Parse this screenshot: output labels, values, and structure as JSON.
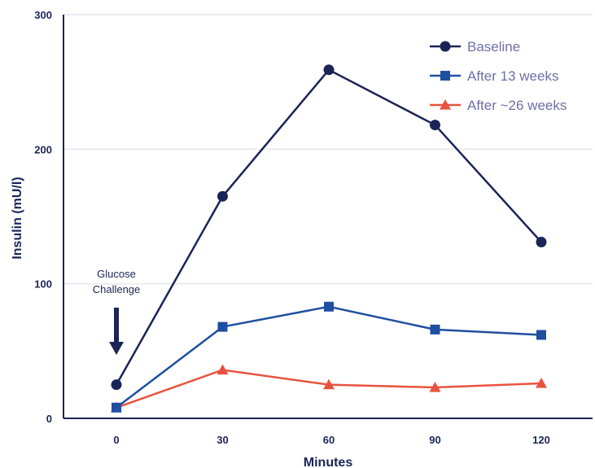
{
  "chart_data": {
    "type": "line",
    "xlabel": "Minutes",
    "ylabel": "Insulin (mU/l)",
    "x": [
      0,
      30,
      60,
      90,
      120
    ],
    "x_tick_labels": [
      "0",
      "30",
      "60",
      "90",
      "120"
    ],
    "ylim": [
      0,
      300
    ],
    "y_ticks": [
      0,
      100,
      200,
      300
    ],
    "y_tick_labels": [
      "0",
      "100",
      "200",
      "300"
    ],
    "grid": "horizontal",
    "legend_position": "top-right",
    "series": [
      {
        "name": "Baseline",
        "marker": "circle",
        "color": "#1a2456",
        "values": [
          25,
          165,
          259,
          218,
          131
        ]
      },
      {
        "name": "After 13 weeks",
        "marker": "square",
        "color": "#1f4fa0",
        "values": [
          8,
          68,
          83,
          66,
          62
        ]
      },
      {
        "name": "After ~26 weeks",
        "marker": "triangle",
        "color": "#e8533f",
        "values": [
          8,
          36,
          25,
          23,
          26
        ]
      }
    ],
    "annotation": {
      "line1": "Glucose",
      "line2": "Challenge",
      "x": 0
    }
  }
}
